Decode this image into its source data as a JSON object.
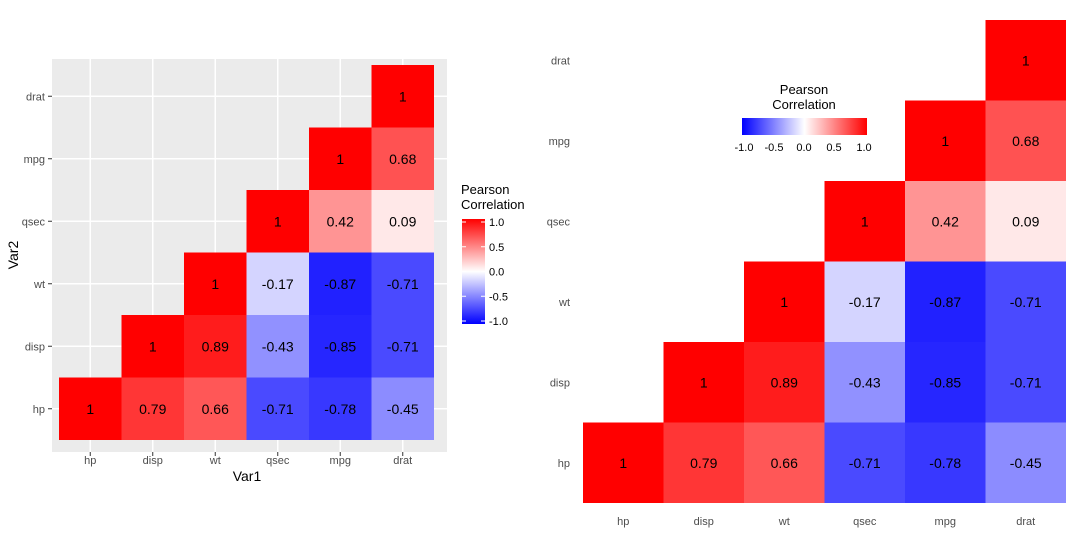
{
  "chart_data": [
    {
      "type": "heatmap",
      "xlabel": "Var1",
      "ylabel": "Var2",
      "x_categories": [
        "hp",
        "disp",
        "wt",
        "qsec",
        "mpg",
        "drat"
      ],
      "y_categories": [
        "hp",
        "disp",
        "wt",
        "qsec",
        "mpg",
        "drat"
      ],
      "cells": [
        {
          "x": "hp",
          "y": "hp",
          "value": 1,
          "label": "1"
        },
        {
          "x": "disp",
          "y": "hp",
          "value": 0.79,
          "label": "0.79"
        },
        {
          "x": "wt",
          "y": "hp",
          "value": 0.66,
          "label": "0.66"
        },
        {
          "x": "qsec",
          "y": "hp",
          "value": -0.71,
          "label": "-0.71"
        },
        {
          "x": "mpg",
          "y": "hp",
          "value": -0.78,
          "label": "-0.78"
        },
        {
          "x": "drat",
          "y": "hp",
          "value": -0.45,
          "label": "-0.45"
        },
        {
          "x": "disp",
          "y": "disp",
          "value": 1,
          "label": "1"
        },
        {
          "x": "wt",
          "y": "disp",
          "value": 0.89,
          "label": "0.89"
        },
        {
          "x": "qsec",
          "y": "disp",
          "value": -0.43,
          "label": "-0.43"
        },
        {
          "x": "mpg",
          "y": "disp",
          "value": -0.85,
          "label": "-0.85"
        },
        {
          "x": "drat",
          "y": "disp",
          "value": -0.71,
          "label": "-0.71"
        },
        {
          "x": "wt",
          "y": "wt",
          "value": 1,
          "label": "1"
        },
        {
          "x": "qsec",
          "y": "wt",
          "value": -0.17,
          "label": "-0.17"
        },
        {
          "x": "mpg",
          "y": "wt",
          "value": -0.87,
          "label": "-0.87"
        },
        {
          "x": "drat",
          "y": "wt",
          "value": -0.71,
          "label": "-0.71"
        },
        {
          "x": "qsec",
          "y": "qsec",
          "value": 1,
          "label": "1"
        },
        {
          "x": "mpg",
          "y": "qsec",
          "value": 0.42,
          "label": "0.42"
        },
        {
          "x": "drat",
          "y": "qsec",
          "value": 0.09,
          "label": "0.09"
        },
        {
          "x": "mpg",
          "y": "mpg",
          "value": 1,
          "label": "1"
        },
        {
          "x": "drat",
          "y": "mpg",
          "value": 0.68,
          "label": "0.68"
        },
        {
          "x": "drat",
          "y": "drat",
          "value": 1,
          "label": "1"
        }
      ],
      "color_scale": {
        "low": "#0000ff",
        "mid": "#ffffff",
        "high": "#ff0000",
        "limits": [
          -1,
          1
        ]
      },
      "legend": {
        "title_line1": "Pearson",
        "title_line2": "Correlation",
        "ticks": [
          "1.0",
          "0.5",
          "0.0",
          "-0.5",
          "-1.0"
        ],
        "position": "right",
        "orientation": "vertical"
      },
      "grid": true,
      "panel_background": "#ebebeb"
    },
    {
      "type": "heatmap",
      "xlabel": "",
      "ylabel": "",
      "x_categories": [
        "hp",
        "disp",
        "wt",
        "qsec",
        "mpg",
        "drat"
      ],
      "y_categories": [
        "hp",
        "disp",
        "wt",
        "qsec",
        "mpg",
        "drat"
      ],
      "cells": [
        {
          "x": "hp",
          "y": "hp",
          "value": 1,
          "label": "1"
        },
        {
          "x": "disp",
          "y": "hp",
          "value": 0.79,
          "label": "0.79"
        },
        {
          "x": "wt",
          "y": "hp",
          "value": 0.66,
          "label": "0.66"
        },
        {
          "x": "qsec",
          "y": "hp",
          "value": -0.71,
          "label": "-0.71"
        },
        {
          "x": "mpg",
          "y": "hp",
          "value": -0.78,
          "label": "-0.78"
        },
        {
          "x": "drat",
          "y": "hp",
          "value": -0.45,
          "label": "-0.45"
        },
        {
          "x": "disp",
          "y": "disp",
          "value": 1,
          "label": "1"
        },
        {
          "x": "wt",
          "y": "disp",
          "value": 0.89,
          "label": "0.89"
        },
        {
          "x": "qsec",
          "y": "disp",
          "value": -0.43,
          "label": "-0.43"
        },
        {
          "x": "mpg",
          "y": "disp",
          "value": -0.85,
          "label": "-0.85"
        },
        {
          "x": "drat",
          "y": "disp",
          "value": -0.71,
          "label": "-0.71"
        },
        {
          "x": "wt",
          "y": "wt",
          "value": 1,
          "label": "1"
        },
        {
          "x": "qsec",
          "y": "wt",
          "value": -0.17,
          "label": "-0.17"
        },
        {
          "x": "mpg",
          "y": "wt",
          "value": -0.87,
          "label": "-0.87"
        },
        {
          "x": "drat",
          "y": "wt",
          "value": -0.71,
          "label": "-0.71"
        },
        {
          "x": "qsec",
          "y": "qsec",
          "value": 1,
          "label": "1"
        },
        {
          "x": "mpg",
          "y": "qsec",
          "value": 0.42,
          "label": "0.42"
        },
        {
          "x": "drat",
          "y": "qsec",
          "value": 0.09,
          "label": "0.09"
        },
        {
          "x": "mpg",
          "y": "mpg",
          "value": 1,
          "label": "1"
        },
        {
          "x": "drat",
          "y": "mpg",
          "value": 0.68,
          "label": "0.68"
        },
        {
          "x": "drat",
          "y": "drat",
          "value": 1,
          "label": "1"
        }
      ],
      "color_scale": {
        "low": "#0000ff",
        "mid": "#ffffff",
        "high": "#ff0000",
        "limits": [
          -1,
          1
        ]
      },
      "legend": {
        "title_line1": "Pearson",
        "title_line2": "Correlation",
        "ticks": [
          "-1.0",
          "-0.5",
          "0.0",
          "0.5",
          "1.0"
        ],
        "position": "top-left",
        "orientation": "horizontal"
      },
      "grid": false,
      "panel_background": "#ffffff"
    }
  ]
}
